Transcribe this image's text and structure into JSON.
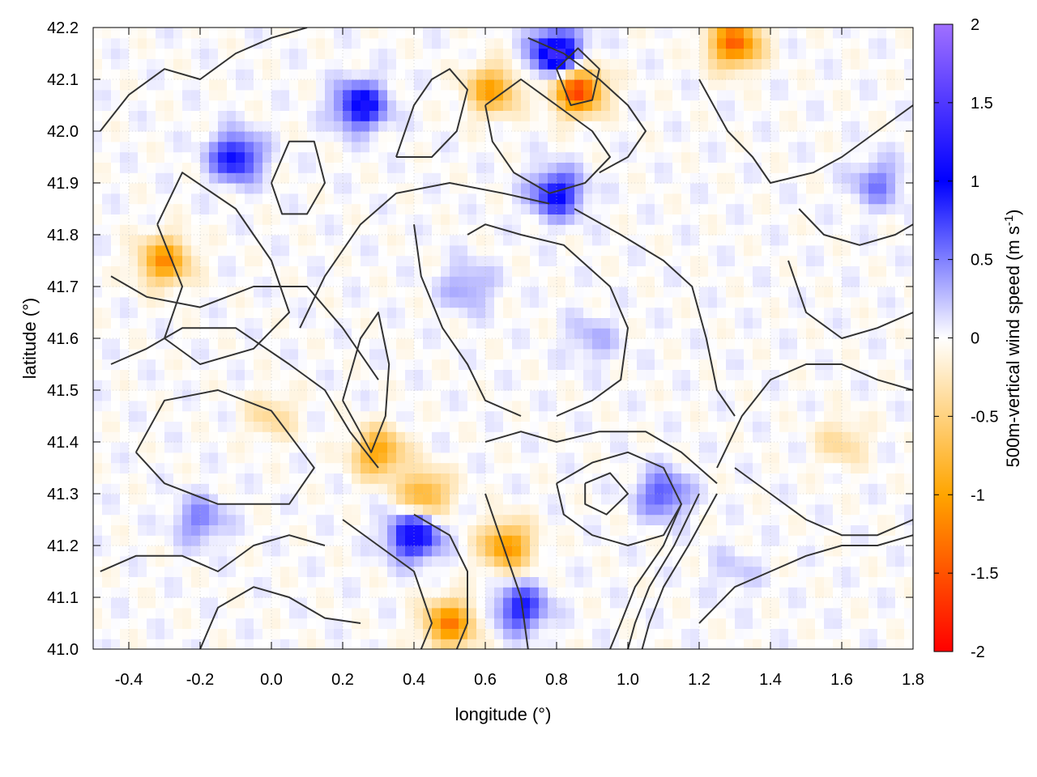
{
  "chart_data": {
    "type": "heatmap",
    "title": "",
    "xlabel": "longitude (°)",
    "ylabel": "latitude (°)",
    "colorbar_label": "500m-vertical wind speed (m s",
    "colorbar_label_sup": "-1",
    "colorbar_label_end": ")",
    "xlim": [
      -0.5,
      1.8
    ],
    "ylim": [
      41.0,
      42.2
    ],
    "clim": [
      -2,
      2
    ],
    "x_ticks": [
      -0.4,
      -0.2,
      0.0,
      0.2,
      0.4,
      0.6,
      0.8,
      1.0,
      1.2,
      1.4,
      1.6,
      1.8
    ],
    "x_tick_labels": [
      "-0.4",
      "-0.2",
      "0.0",
      "0.2",
      "0.4",
      "0.6",
      "0.8",
      "1.0",
      "1.2",
      "1.4",
      "1.6",
      "1.8"
    ],
    "y_ticks": [
      41.0,
      41.1,
      41.2,
      41.3,
      41.4,
      41.5,
      41.6,
      41.7,
      41.8,
      41.9,
      42.0,
      42.1,
      42.2
    ],
    "y_tick_labels": [
      "41.0",
      "41.1",
      "41.2",
      "41.3",
      "41.4",
      "41.5",
      "41.6",
      "41.7",
      "41.8",
      "41.9",
      "42.0",
      "42.1",
      "42.2"
    ],
    "colorbar_ticks": [
      -2,
      -1.5,
      -1,
      -0.5,
      0,
      0.5,
      1,
      1.5,
      2
    ],
    "colorbar_tick_labels": [
      "-2",
      "-1.5",
      "-1",
      "-0.5",
      "0",
      "0.5",
      "1",
      "1.5",
      "2"
    ],
    "colormap": [
      {
        "value": -2,
        "color": "#ff0000"
      },
      {
        "value": -1,
        "color": "#ffa500"
      },
      {
        "value": 0,
        "color": "#ffffff"
      },
      {
        "value": 1,
        "color": "#0000ff"
      },
      {
        "value": 2,
        "color": "#a070ff"
      }
    ],
    "contour_color": "#333333",
    "grid": true,
    "features": [
      {
        "lon": -0.3,
        "lat": 41.75,
        "w": -1.1
      },
      {
        "lon": 0.25,
        "lat": 42.05,
        "w": 1.1
      },
      {
        "lon": -0.1,
        "lat": 41.95,
        "w": 1.0
      },
      {
        "lon": 0.86,
        "lat": 42.08,
        "w": -1.6
      },
      {
        "lon": 0.8,
        "lat": 42.15,
        "w": 1.4
      },
      {
        "lon": 0.62,
        "lat": 42.08,
        "w": -1.0
      },
      {
        "lon": 1.3,
        "lat": 42.17,
        "w": -1.4
      },
      {
        "lon": 0.3,
        "lat": 41.38,
        "w": -1.0
      },
      {
        "lon": 0.43,
        "lat": 41.3,
        "w": -0.9
      },
      {
        "lon": 0.5,
        "lat": 41.05,
        "w": -1.2
      },
      {
        "lon": 0.66,
        "lat": 41.2,
        "w": -1.1
      },
      {
        "lon": 0.4,
        "lat": 41.22,
        "w": 1.2
      },
      {
        "lon": 0.7,
        "lat": 41.08,
        "w": 0.9
      },
      {
        "lon": 0.8,
        "lat": 41.88,
        "w": 1.0
      },
      {
        "lon": 1.1,
        "lat": 41.3,
        "w": 0.7
      },
      {
        "lon": 0.0,
        "lat": 41.45,
        "w": -0.4
      },
      {
        "lon": -0.2,
        "lat": 41.25,
        "w": 0.5
      },
      {
        "lon": 1.6,
        "lat": 41.4,
        "w": -0.4
      },
      {
        "lon": 1.7,
        "lat": 41.9,
        "w": 0.5
      },
      {
        "lon": 1.3,
        "lat": 41.15,
        "w": 0.2
      },
      {
        "lon": 0.55,
        "lat": 41.7,
        "w": 0.4
      },
      {
        "lon": 0.9,
        "lat": 41.6,
        "w": 0.3
      }
    ],
    "contours": [
      [
        [
          -0.48,
          42.0
        ],
        [
          -0.4,
          42.07
        ],
        [
          -0.3,
          42.12
        ],
        [
          -0.2,
          42.1
        ],
        [
          -0.1,
          42.15
        ],
        [
          0.0,
          42.18
        ],
        [
          0.1,
          42.2
        ]
      ],
      [
        [
          -0.32,
          41.82
        ],
        [
          -0.25,
          41.7
        ],
        [
          -0.3,
          41.6
        ],
        [
          -0.2,
          41.55
        ],
        [
          -0.05,
          41.58
        ],
        [
          0.05,
          41.65
        ],
        [
          0.0,
          41.75
        ],
        [
          -0.1,
          41.85
        ],
        [
          -0.25,
          41.92
        ],
        [
          -0.32,
          41.82
        ]
      ],
      [
        [
          -0.45,
          41.72
        ],
        [
          -0.35,
          41.68
        ],
        [
          -0.2,
          41.66
        ],
        [
          -0.05,
          41.7
        ],
        [
          0.1,
          41.7
        ],
        [
          0.2,
          41.62
        ],
        [
          0.3,
          41.52
        ]
      ],
      [
        [
          -0.38,
          41.38
        ],
        [
          -0.3,
          41.48
        ],
        [
          -0.15,
          41.5
        ],
        [
          0.0,
          41.46
        ],
        [
          0.12,
          41.35
        ],
        [
          0.05,
          41.28
        ],
        [
          -0.15,
          41.28
        ],
        [
          -0.3,
          41.32
        ],
        [
          -0.38,
          41.38
        ]
      ],
      [
        [
          -0.45,
          41.55
        ],
        [
          -0.35,
          41.58
        ],
        [
          -0.25,
          41.62
        ],
        [
          -0.1,
          41.62
        ],
        [
          0.05,
          41.55
        ],
        [
          0.15,
          41.5
        ],
        [
          0.22,
          41.42
        ],
        [
          0.3,
          41.35
        ]
      ],
      [
        [
          0.08,
          41.62
        ],
        [
          0.15,
          41.72
        ],
        [
          0.25,
          41.82
        ],
        [
          0.35,
          41.88
        ],
        [
          0.5,
          41.9
        ],
        [
          0.65,
          41.88
        ],
        [
          0.78,
          41.86
        ]
      ],
      [
        [
          0.2,
          41.48
        ],
        [
          0.25,
          41.6
        ],
        [
          0.3,
          41.65
        ],
        [
          0.33,
          41.55
        ],
        [
          0.32,
          41.45
        ],
        [
          0.28,
          41.38
        ],
        [
          0.2,
          41.48
        ]
      ],
      [
        [
          0.4,
          41.82
        ],
        [
          0.42,
          41.72
        ],
        [
          0.48,
          41.62
        ],
        [
          0.55,
          41.55
        ],
        [
          0.6,
          41.48
        ],
        [
          0.7,
          41.45
        ]
      ],
      [
        [
          0.85,
          41.85
        ],
        [
          0.98,
          41.8
        ],
        [
          1.1,
          41.75
        ],
        [
          1.18,
          41.7
        ],
        [
          1.22,
          41.6
        ],
        [
          1.25,
          41.5
        ],
        [
          1.3,
          41.45
        ]
      ],
      [
        [
          0.55,
          41.8
        ],
        [
          0.6,
          41.82
        ],
        [
          0.7,
          41.8
        ],
        [
          0.82,
          41.78
        ],
        [
          0.95,
          41.7
        ],
        [
          1.0,
          41.62
        ],
        [
          0.98,
          41.52
        ],
        [
          0.9,
          41.48
        ],
        [
          0.8,
          41.45
        ]
      ],
      [
        [
          0.6,
          42.05
        ],
        [
          0.7,
          42.1
        ],
        [
          0.8,
          42.05
        ],
        [
          0.9,
          42.0
        ],
        [
          0.95,
          41.95
        ],
        [
          0.88,
          41.9
        ],
        [
          0.78,
          41.88
        ],
        [
          0.68,
          41.92
        ],
        [
          0.62,
          41.98
        ],
        [
          0.6,
          42.05
        ]
      ],
      [
        [
          0.72,
          42.18
        ],
        [
          0.82,
          42.15
        ],
        [
          0.92,
          42.1
        ],
        [
          1.0,
          42.05
        ],
        [
          1.05,
          42.0
        ],
        [
          1.0,
          41.95
        ],
        [
          0.92,
          41.92
        ]
      ],
      [
        [
          0.8,
          42.12
        ],
        [
          0.86,
          42.16
        ],
        [
          0.92,
          42.12
        ],
        [
          0.9,
          42.06
        ],
        [
          0.84,
          42.05
        ],
        [
          0.8,
          42.12
        ]
      ],
      [
        [
          1.2,
          42.1
        ],
        [
          1.28,
          42.0
        ],
        [
          1.35,
          41.95
        ],
        [
          1.4,
          41.9
        ],
        [
          1.52,
          41.92
        ],
        [
          1.6,
          41.95
        ],
        [
          1.7,
          42.0
        ],
        [
          1.8,
          42.05
        ]
      ],
      [
        [
          1.25,
          41.35
        ],
        [
          1.32,
          41.45
        ],
        [
          1.4,
          41.52
        ],
        [
          1.5,
          41.55
        ],
        [
          1.6,
          41.55
        ],
        [
          1.7,
          41.52
        ],
        [
          1.8,
          41.5
        ]
      ],
      [
        [
          0.8,
          41.32
        ],
        [
          0.9,
          41.36
        ],
        [
          1.0,
          41.38
        ],
        [
          1.1,
          41.35
        ],
        [
          1.15,
          41.28
        ],
        [
          1.1,
          41.22
        ],
        [
          1.0,
          41.2
        ],
        [
          0.9,
          41.22
        ],
        [
          0.82,
          41.26
        ],
        [
          0.8,
          41.32
        ]
      ],
      [
        [
          0.6,
          41.4
        ],
        [
          0.7,
          41.42
        ],
        [
          0.8,
          41.4
        ],
        [
          0.92,
          41.42
        ],
        [
          1.05,
          41.42
        ],
        [
          1.15,
          41.38
        ],
        [
          1.25,
          41.32
        ]
      ],
      [
        [
          0.88,
          41.32
        ],
        [
          0.95,
          41.34
        ],
        [
          1.0,
          41.3
        ],
        [
          0.94,
          41.26
        ],
        [
          0.88,
          41.28
        ],
        [
          0.88,
          41.32
        ]
      ],
      [
        [
          1.15,
          41.28
        ],
        [
          1.1,
          41.2
        ],
        [
          1.02,
          41.12
        ],
        [
          0.98,
          41.05
        ],
        [
          0.95,
          41.0
        ]
      ],
      [
        [
          1.2,
          41.3
        ],
        [
          1.13,
          41.2
        ],
        [
          1.06,
          41.12
        ],
        [
          1.02,
          41.05
        ],
        [
          1.0,
          41.0
        ]
      ],
      [
        [
          1.25,
          41.3
        ],
        [
          1.17,
          41.2
        ],
        [
          1.1,
          41.12
        ],
        [
          1.06,
          41.05
        ],
        [
          1.04,
          41.0
        ]
      ],
      [
        [
          1.2,
          41.05
        ],
        [
          1.3,
          41.12
        ],
        [
          1.4,
          41.15
        ],
        [
          1.5,
          41.18
        ],
        [
          1.6,
          41.2
        ],
        [
          1.7,
          41.2
        ],
        [
          1.8,
          41.22
        ]
      ],
      [
        [
          1.3,
          41.35
        ],
        [
          1.4,
          41.3
        ],
        [
          1.5,
          41.25
        ],
        [
          1.6,
          41.22
        ],
        [
          1.7,
          41.22
        ],
        [
          1.8,
          41.25
        ]
      ],
      [
        [
          0.4,
          41.26
        ],
        [
          0.5,
          41.22
        ],
        [
          0.55,
          41.15
        ],
        [
          0.55,
          41.05
        ],
        [
          0.52,
          41.0
        ]
      ],
      [
        [
          0.2,
          41.25
        ],
        [
          0.3,
          41.2
        ],
        [
          0.4,
          41.15
        ],
        [
          0.45,
          41.05
        ],
        [
          0.42,
          41.0
        ]
      ],
      [
        [
          0.6,
          41.3
        ],
        [
          0.65,
          41.2
        ],
        [
          0.7,
          41.1
        ],
        [
          0.72,
          41.0
        ]
      ],
      [
        [
          -0.2,
          41.0
        ],
        [
          -0.15,
          41.08
        ],
        [
          -0.05,
          41.12
        ],
        [
          0.05,
          41.1
        ],
        [
          0.15,
          41.06
        ],
        [
          0.25,
          41.05
        ]
      ],
      [
        [
          -0.48,
          41.15
        ],
        [
          -0.38,
          41.18
        ],
        [
          -0.25,
          41.18
        ],
        [
          -0.15,
          41.15
        ],
        [
          -0.05,
          41.2
        ],
        [
          0.05,
          41.22
        ],
        [
          0.15,
          41.2
        ]
      ],
      [
        [
          0.0,
          41.9
        ],
        [
          0.05,
          41.98
        ],
        [
          0.12,
          41.98
        ],
        [
          0.15,
          41.9
        ],
        [
          0.1,
          41.84
        ],
        [
          0.03,
          41.84
        ],
        [
          0.0,
          41.9
        ]
      ],
      [
        [
          0.35,
          41.95
        ],
        [
          0.4,
          42.05
        ],
        [
          0.45,
          42.1
        ],
        [
          0.5,
          42.12
        ],
        [
          0.55,
          42.08
        ],
        [
          0.52,
          42.0
        ],
        [
          0.45,
          41.95
        ],
        [
          0.35,
          41.95
        ]
      ],
      [
        [
          1.45,
          41.75
        ],
        [
          1.5,
          41.65
        ],
        [
          1.6,
          41.6
        ],
        [
          1.7,
          41.62
        ],
        [
          1.8,
          41.65
        ]
      ],
      [
        [
          1.48,
          41.85
        ],
        [
          1.55,
          41.8
        ],
        [
          1.65,
          41.78
        ],
        [
          1.75,
          41.8
        ],
        [
          1.8,
          41.82
        ]
      ]
    ]
  }
}
